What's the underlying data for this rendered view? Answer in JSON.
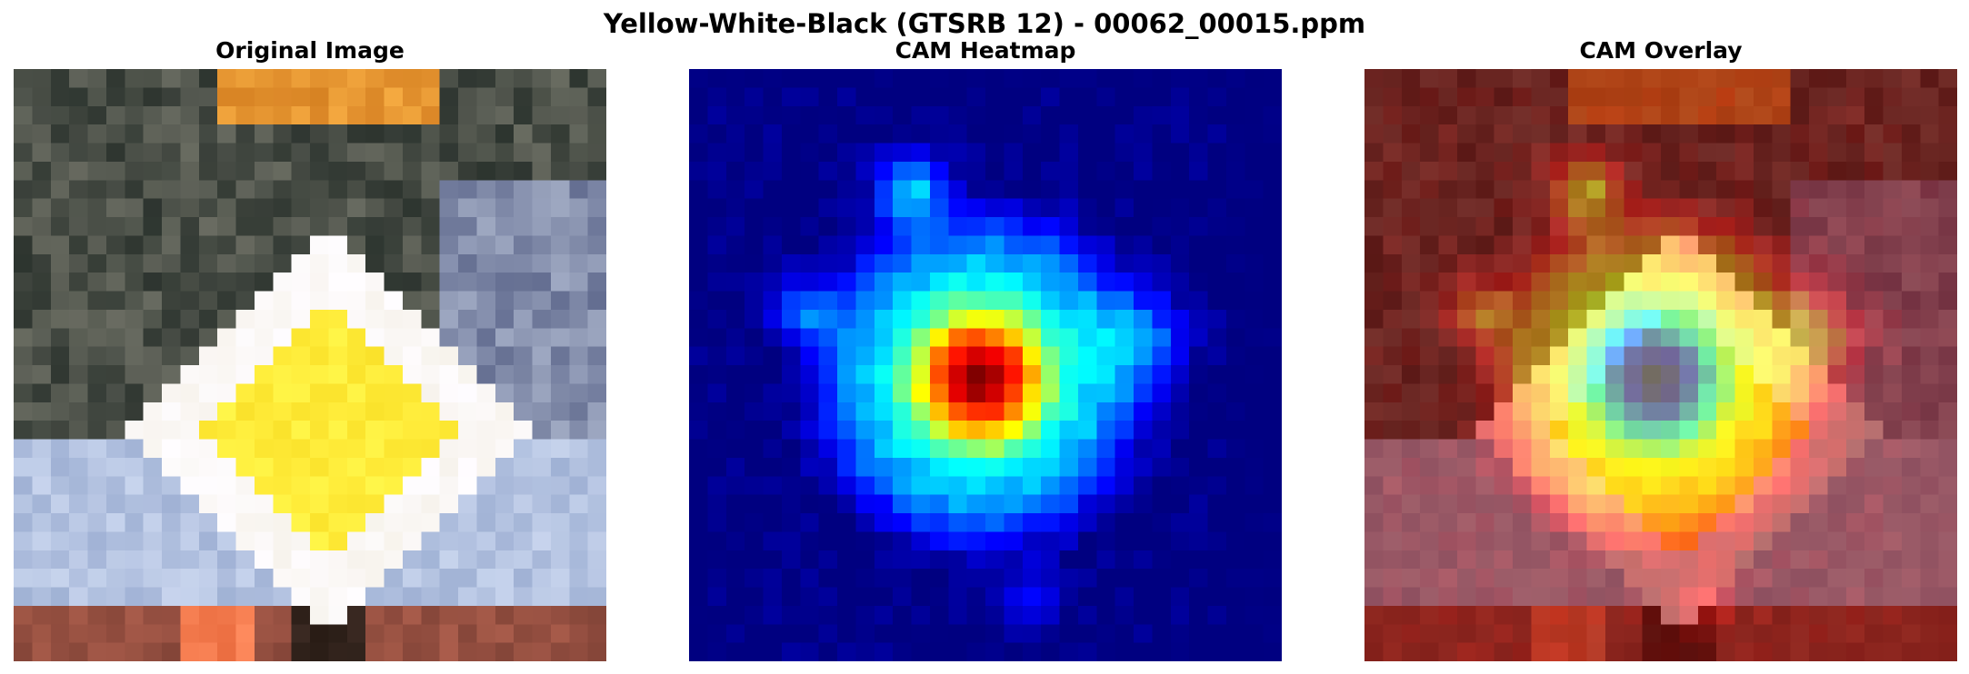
{
  "figure": {
    "title": "Yellow-White-Black (GTSRB 12) - 00062_00015.ppm"
  },
  "panels": [
    {
      "title": "Original Image"
    },
    {
      "title": "CAM Heatmap"
    },
    {
      "title": "CAM Overlay"
    }
  ],
  "colormap": "jet",
  "colors": {
    "sign_yellow": "#ffec3a",
    "sign_white": "#fbfaf8",
    "heat_background": "#00008b",
    "overlay_tint": "#b0182a"
  }
}
